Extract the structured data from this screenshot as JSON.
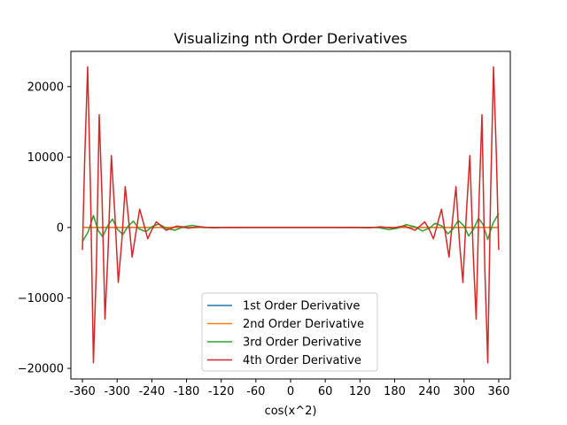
{
  "chart_data": {
    "type": "line",
    "title": "Visualizing nth Order Derivatives",
    "xlabel": "cos(x^2)",
    "ylabel": "",
    "xlim": [
      -380,
      380
    ],
    "ylim": [
      -21500,
      25000
    ],
    "x_ticks": [
      -360,
      -300,
      -240,
      -180,
      -120,
      -60,
      0,
      60,
      120,
      180,
      240,
      300,
      360
    ],
    "x_tick_labels": [
      "-360",
      "-300",
      "-240",
      "-180",
      "-120",
      "-60",
      "0",
      "60",
      "120",
      "180",
      "240",
      "300",
      "360"
    ],
    "y_ticks": [
      -20000,
      -10000,
      0,
      10000,
      20000
    ],
    "y_tick_labels": [
      "−20000",
      "−10000",
      "0",
      "10000",
      "20000"
    ],
    "grid": false,
    "legend_position": "lower center",
    "series": [
      {
        "name": "1st Order Derivative",
        "color": "#1f77b4",
        "x": [
          -360,
          0,
          360
        ],
        "y": [
          0,
          0,
          0
        ]
      },
      {
        "name": "2nd Order Derivative",
        "color": "#ff7f0e",
        "x": [
          -360,
          0,
          360
        ],
        "y": [
          0,
          0,
          0
        ]
      },
      {
        "name": "3rd Order Derivative",
        "color": "#2ca02c",
        "x": [
          -360,
          -350,
          -341,
          -333,
          -325,
          -316,
          -308,
          -300,
          -290,
          -281,
          -272,
          -262,
          -250,
          -240,
          -228,
          -215,
          -200,
          -185,
          -170,
          -150,
          -120,
          -80,
          0,
          80,
          120,
          150,
          170,
          185,
          200,
          215,
          228,
          240,
          250,
          262,
          272,
          281,
          290,
          300,
          308,
          316,
          325,
          333,
          341,
          350,
          360
        ],
        "y": [
          -2000,
          -600,
          1700,
          -400,
          -1300,
          300,
          1200,
          -200,
          -1000,
          200,
          900,
          -200,
          -600,
          100,
          500,
          -100,
          -400,
          100,
          300,
          0,
          0,
          0,
          0,
          0,
          0,
          0,
          -300,
          -100,
          400,
          100,
          -500,
          -100,
          600,
          200,
          -900,
          -200,
          1000,
          200,
          -1200,
          -300,
          1300,
          400,
          -1700,
          600,
          2000
        ]
      },
      {
        "name": "4th Order Derivative",
        "color": "#d62728",
        "x": [
          -360,
          -356,
          -351,
          -346,
          -341,
          -336,
          -331,
          -326,
          -321,
          -316,
          -310,
          -304,
          -298,
          -292,
          -286,
          -280,
          -274,
          -268,
          -261,
          -254,
          -247,
          -240,
          -232,
          -224,
          -215,
          -206,
          -197,
          -187,
          -177,
          -167,
          -156,
          -144,
          -131,
          -118,
          -104,
          -88,
          -70,
          -50,
          -25,
          0,
          25,
          50,
          70,
          88,
          104,
          118,
          131,
          144,
          156,
          167,
          177,
          187,
          197,
          206,
          215,
          224,
          232,
          240,
          247,
          254,
          261,
          268,
          274,
          280,
          286,
          292,
          298,
          304,
          310,
          316,
          321,
          326,
          331,
          336,
          341,
          346,
          351,
          356,
          360
        ],
        "y": [
          -3200,
          10000,
          22800,
          5000,
          -19200,
          -6000,
          16000,
          4000,
          -13000,
          -4000,
          10200,
          2000,
          -7800,
          -2000,
          5800,
          1000,
          -4200,
          -1000,
          2600,
          500,
          -1600,
          -300,
          800,
          200,
          -400,
          -100,
          200,
          100,
          -100,
          0,
          100,
          0,
          -50,
          0,
          30,
          0,
          0,
          0,
          0,
          0,
          0,
          0,
          0,
          0,
          30,
          0,
          -50,
          0,
          100,
          0,
          -100,
          100,
          200,
          -100,
          -400,
          200,
          800,
          -300,
          -1600,
          500,
          2600,
          -1000,
          -4200,
          1000,
          5800,
          -2000,
          -7800,
          2000,
          10200,
          -4000,
          -13000,
          4000,
          16000,
          -6000,
          -19200,
          5000,
          22800,
          10000,
          -3200
        ]
      }
    ]
  }
}
